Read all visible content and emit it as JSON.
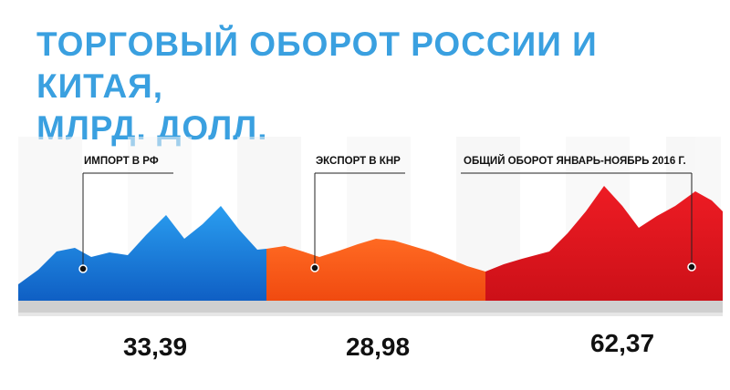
{
  "title_lines": [
    "ТОРГОВЫЙ ОБОРОТ РОССИИ И КИТАЯ,",
    "МЛРД. ДОЛЛ."
  ],
  "colors": {
    "title": "#3aa0e0",
    "import": "#1a78d8",
    "export": "#ff5a1a",
    "total": "#e0161e",
    "value_text": "#111111"
  },
  "chart_data": {
    "type": "area",
    "title": "ТОРГОВЫЙ ОБОРОТ РОССИИ И КИТАЯ, МЛРД. ДОЛЛ.",
    "categories": [
      "ИМПОРТ В РФ",
      "ЭКСПОРТ В КНР",
      "ОБЩИЙ ОБОРОТ ЯНВАРЬ-НОЯБРЬ 2016 Г."
    ],
    "values": [
      33.39,
      28.98,
      62.37
    ],
    "value_labels": [
      "33,39",
      "28,98",
      "62,37"
    ],
    "grid": false,
    "legend": "none"
  }
}
